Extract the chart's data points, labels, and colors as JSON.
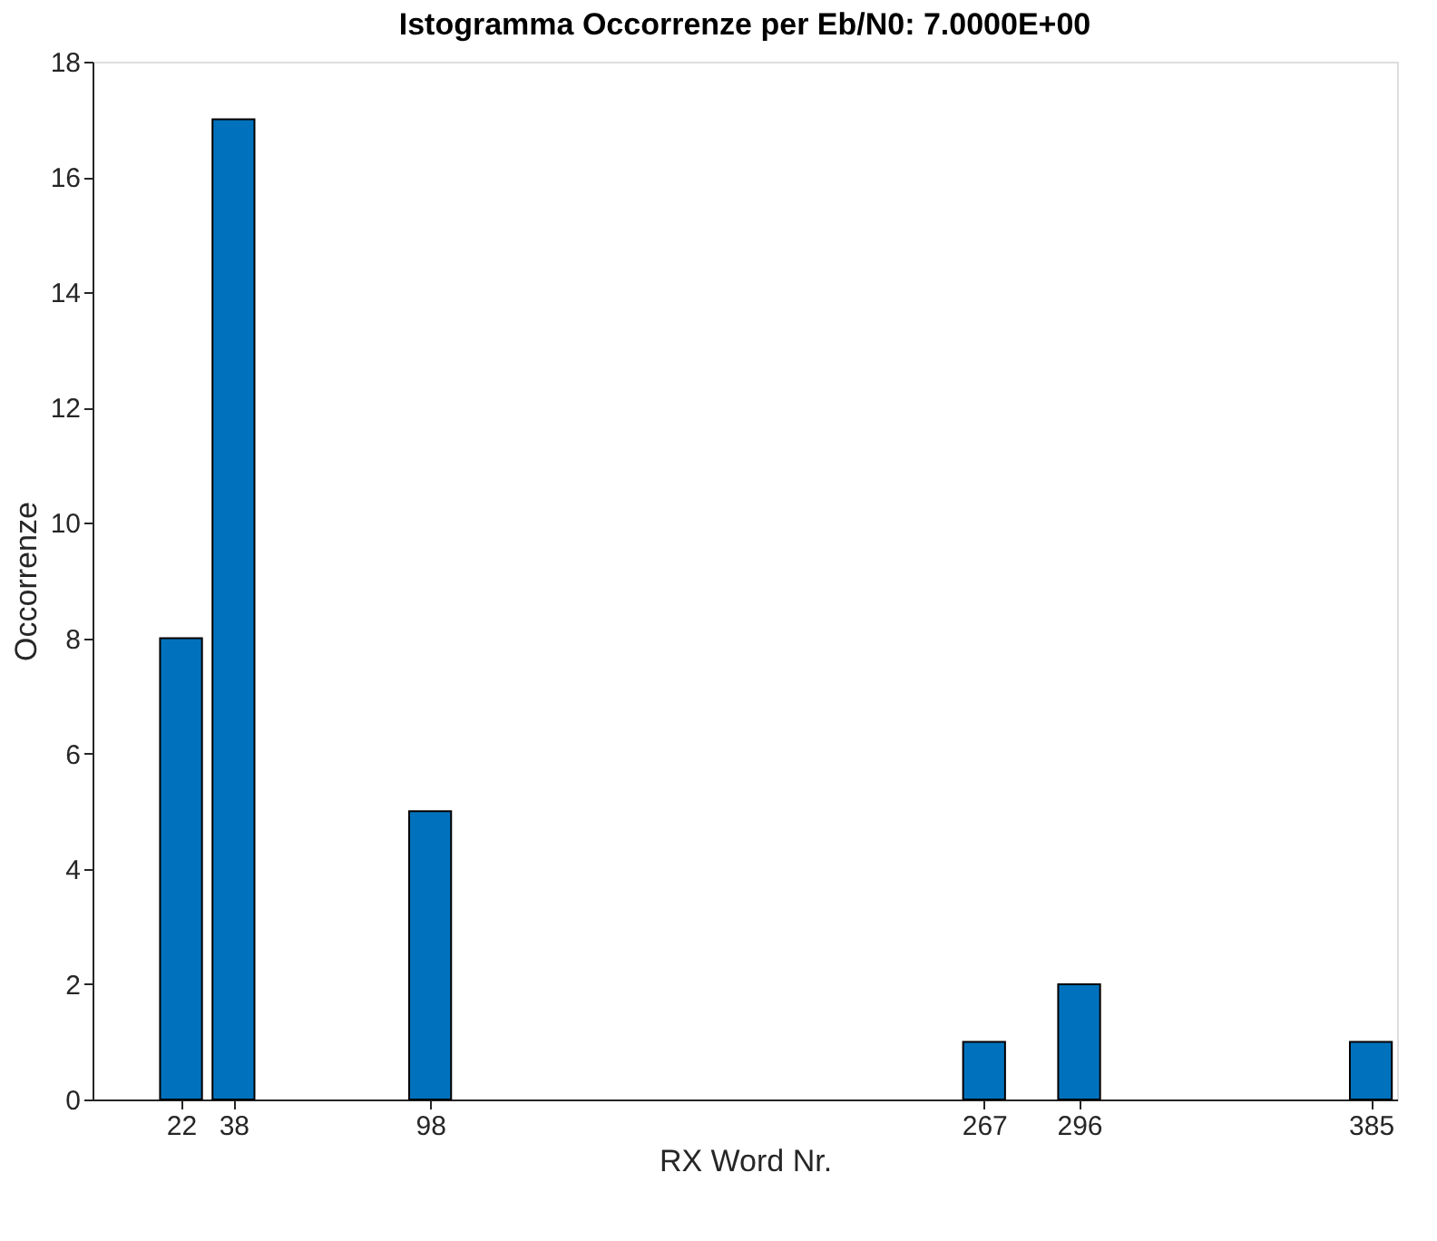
{
  "chart_data": {
    "type": "bar",
    "title": "Istogramma Occorrenze per Eb/N0:  7.0000E+00",
    "xlabel": "RX Word Nr.",
    "ylabel": "Occorrenze",
    "x": [
      22,
      38,
      98,
      267,
      296,
      385
    ],
    "values": [
      8,
      17,
      5,
      1,
      2,
      1
    ],
    "color": "#0072bd",
    "xlim": [
      -5,
      393
    ],
    "xticks": [
      22,
      38,
      98,
      267,
      296,
      385
    ],
    "ylim": [
      0,
      18
    ],
    "yticks": [
      0,
      2,
      4,
      6,
      8,
      10,
      12,
      14,
      16,
      18
    ],
    "grid": false
  }
}
